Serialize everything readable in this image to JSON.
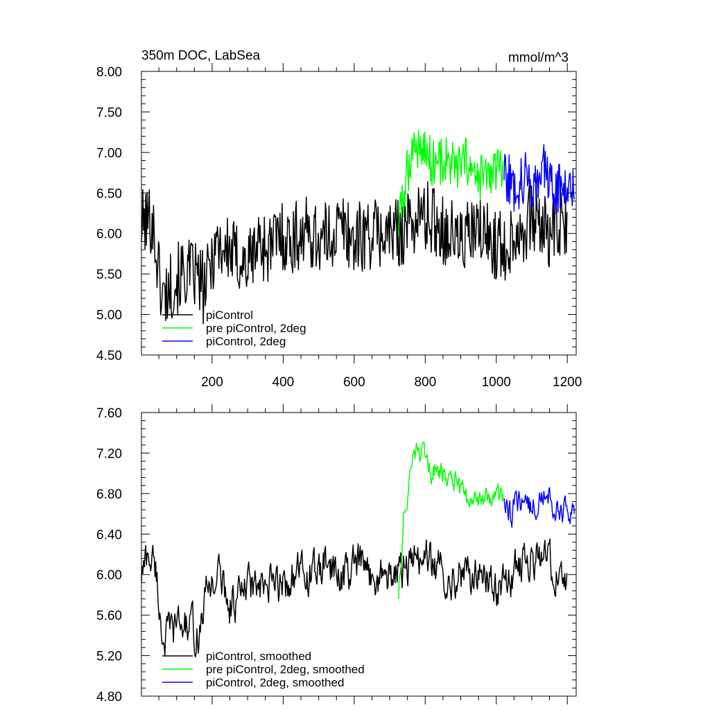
{
  "chart_data": [
    {
      "type": "line",
      "title": "350m DOC, LabSea",
      "units": "mmol/m^3",
      "xlim": [
        1,
        1225
      ],
      "ylim": [
        4.5,
        8.0
      ],
      "xticks": [
        200,
        400,
        600,
        800,
        1000,
        1200
      ],
      "xtick_labels": [
        "200",
        "400",
        "600",
        "800",
        "1000",
        "1200"
      ],
      "yticks": [
        4.5,
        5.0,
        5.5,
        6.0,
        6.5,
        7.0,
        7.5,
        8.0
      ],
      "ytick_labels": [
        "4.50",
        "5.00",
        "5.50",
        "6.00",
        "6.50",
        "7.00",
        "7.50",
        "8.00"
      ],
      "grid": false,
      "legend_position": "bottom-left",
      "series": [
        {
          "name": "piControl",
          "color": "#000000",
          "x_start": 1,
          "x_end": 1200,
          "x": [
            1,
            30,
            60,
            90,
            120,
            150,
            180,
            210,
            240,
            270,
            300,
            330,
            360,
            390,
            420,
            450,
            480,
            510,
            540,
            570,
            600,
            630,
            660,
            690,
            720,
            750,
            780,
            810,
            840,
            870,
            900,
            930,
            960,
            990,
            1020,
            1050,
            1080,
            1110,
            1140,
            1170,
            1200
          ],
          "y": [
            6.1,
            6.2,
            5.2,
            5.4,
            5.5,
            5.5,
            5.3,
            5.9,
            5.8,
            5.7,
            5.6,
            5.9,
            5.8,
            6.0,
            5.9,
            6.0,
            6.0,
            5.9,
            6.0,
            6.1,
            5.9,
            6.0,
            6.0,
            6.0,
            6.0,
            6.1,
            6.2,
            6.2,
            6.1,
            6.0,
            5.9,
            6.0,
            6.0,
            5.9,
            5.8,
            6.0,
            6.1,
            6.2,
            6.0,
            6.1,
            6.0
          ],
          "noise": 0.45
        },
        {
          "name": "pre piControl, 2deg",
          "color": "#00ff00",
          "x_start": 725,
          "x_end": 1020,
          "x": [
            725,
            740,
            760,
            780,
            800,
            820,
            840,
            860,
            880,
            900,
            920,
            940,
            960,
            980,
            1000,
            1020
          ],
          "y": [
            6.1,
            6.5,
            7.0,
            7.1,
            7.0,
            6.9,
            6.9,
            6.9,
            6.8,
            6.8,
            6.9,
            6.6,
            6.7,
            6.7,
            6.8,
            6.7
          ],
          "noise": 0.32
        },
        {
          "name": "piControl, 2deg",
          "color": "#0000ff",
          "x_start": 1022,
          "x_end": 1220,
          "x": [
            1022,
            1040,
            1060,
            1080,
            1100,
            1120,
            1140,
            1160,
            1180,
            1200,
            1220
          ],
          "y": [
            6.8,
            6.6,
            6.6,
            6.7,
            6.6,
            6.7,
            6.8,
            6.5,
            6.6,
            6.6,
            6.7
          ],
          "noise": 0.33
        }
      ]
    },
    {
      "type": "line",
      "title": "",
      "units": "",
      "xlim": [
        1,
        1225
      ],
      "ylim": [
        4.8,
        7.6
      ],
      "xticks": [
        200,
        400,
        600,
        800,
        1000,
        1200
      ],
      "xtick_labels": [],
      "yticks": [
        4.8,
        5.2,
        5.6,
        6.0,
        6.4,
        6.8,
        7.2,
        7.6
      ],
      "ytick_labels": [
        "4.80",
        "5.20",
        "5.60",
        "6.00",
        "6.40",
        "6.80",
        "7.20",
        "7.60"
      ],
      "grid": false,
      "legend_position": "bottom-left",
      "series": [
        {
          "name": "piControl, smoothed",
          "color": "#000000",
          "x_start": 1,
          "x_end": 1200,
          "x": [
            1,
            20,
            40,
            60,
            80,
            100,
            130,
            160,
            190,
            220,
            250,
            280,
            310,
            340,
            370,
            400,
            430,
            460,
            490,
            520,
            550,
            580,
            610,
            640,
            670,
            700,
            730,
            760,
            790,
            820,
            850,
            880,
            910,
            940,
            970,
            1000,
            1030,
            1060,
            1090,
            1120,
            1150,
            1180,
            1200
          ],
          "y": [
            6.0,
            6.2,
            6.1,
            5.4,
            5.4,
            5.5,
            5.5,
            5.4,
            5.9,
            6.0,
            5.7,
            5.8,
            5.9,
            5.8,
            5.9,
            5.9,
            6.0,
            6.0,
            6.0,
            6.1,
            6.0,
            6.0,
            6.1,
            6.0,
            6.0,
            6.0,
            6.0,
            6.1,
            6.2,
            6.1,
            6.0,
            6.0,
            6.0,
            6.0,
            6.0,
            5.9,
            5.9,
            6.1,
            6.1,
            6.2,
            6.1,
            6.0,
            5.9
          ],
          "noise": 0.22
        },
        {
          "name": "pre piControl, 2deg, smoothed",
          "color": "#00ff00",
          "x_start": 725,
          "x_end": 1020,
          "x": [
            725,
            740,
            755,
            770,
            785,
            800,
            830,
            860,
            890,
            920,
            950,
            980,
            1000,
            1020
          ],
          "y": [
            5.8,
            6.6,
            6.9,
            7.2,
            7.2,
            7.1,
            7.0,
            7.0,
            6.9,
            6.7,
            6.7,
            6.8,
            6.7,
            6.8
          ],
          "noise": 0.13
        },
        {
          "name": "piControl, 2deg, smoothed",
          "color": "#0000ff",
          "x_start": 1022,
          "x_end": 1220,
          "x": [
            1022,
            1040,
            1060,
            1080,
            1100,
            1120,
            1140,
            1160,
            1180,
            1200,
            1220
          ],
          "y": [
            6.8,
            6.6,
            6.7,
            6.8,
            6.6,
            6.8,
            6.9,
            6.7,
            6.6,
            6.6,
            6.7
          ],
          "noise": 0.15
        }
      ]
    }
  ]
}
